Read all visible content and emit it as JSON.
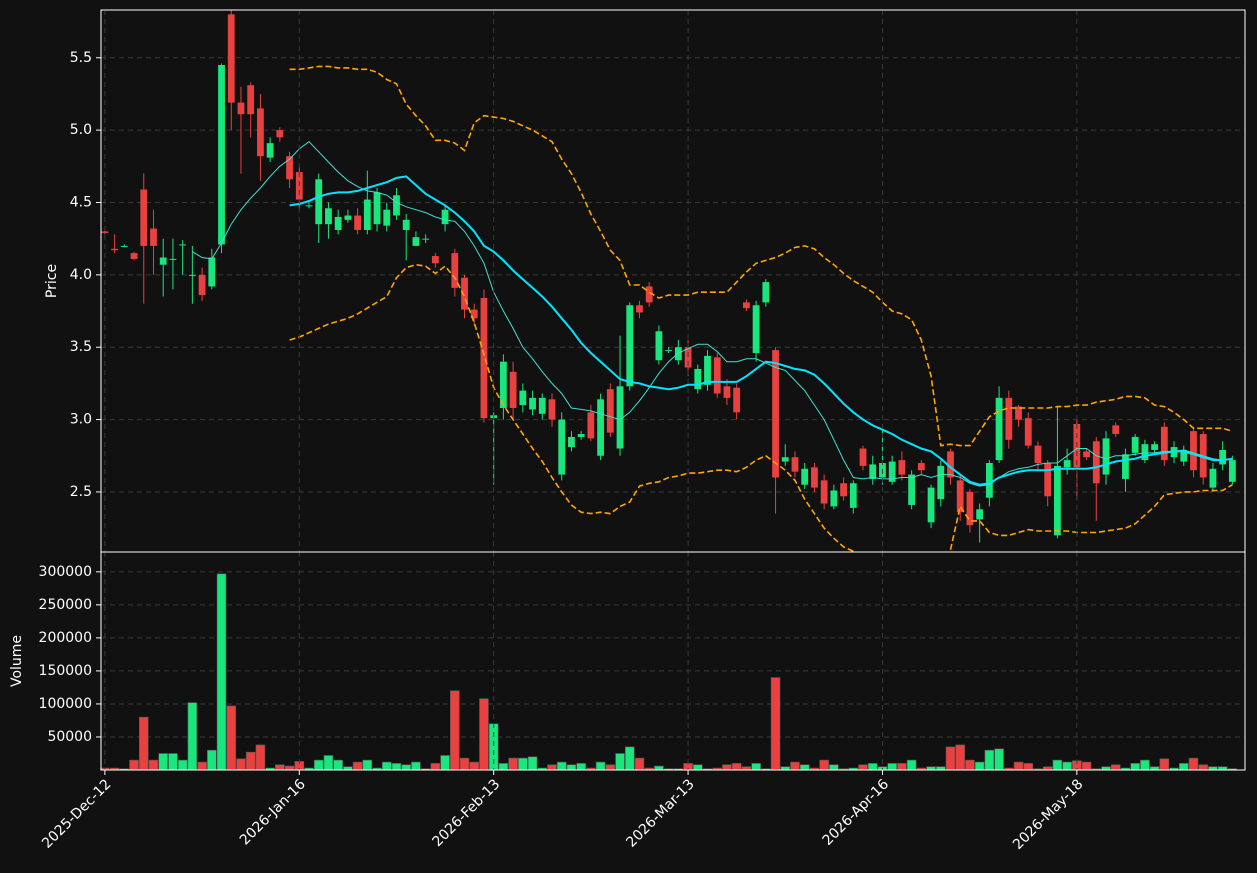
{
  "chart_data": [
    {
      "type": "candlestick",
      "ylabel": "Price",
      "xlim": [
        -0.4,
        117.3
      ],
      "ylim": [
        2.085,
        5.83
      ],
      "yticks": [
        2.5,
        {
          "value": 3,
          "label": "3.0"
        },
        3.5,
        {
          "value": 4,
          "label": "4.0"
        },
        4.5,
        {
          "value": 5,
          "label": "5.0"
        },
        5.5
      ],
      "grid": true,
      "up_color": "#19e67d",
      "down_color": "#e8413f",
      "open": [
        4.3,
        4.18,
        4.2,
        4.15,
        4.59,
        4.32,
        4.07,
        4.11,
        4.21,
        4.0,
        4.0,
        3.92,
        4.21,
        5.8,
        5.19,
        5.31,
        5.15,
        4.81,
        5.0,
        4.82,
        4.71,
        4.48,
        4.35,
        4.35,
        4.31,
        4.38,
        4.41,
        4.31,
        4.35,
        4.34,
        4.41,
        4.31,
        4.2,
        4.25,
        4.13,
        4.35,
        4.15,
        3.98,
        3.76,
        3.84,
        3.01,
        3.08,
        3.33,
        3.1,
        3.07,
        3.04,
        3.14,
        2.62,
        2.81,
        2.88,
        3.05,
        2.75,
        3.21,
        2.8,
        3.23,
        3.79,
        3.92,
        3.41,
        3.48,
        3.41,
        3.5,
        3.21,
        3.24,
        3.43,
        3.23,
        3.22,
        3.81,
        3.46,
        3.81,
        3.48,
        2.71,
        2.74,
        2.55,
        2.67,
        2.58,
        2.4,
        2.56,
        2.39,
        2.8,
        2.59,
        2.6,
        2.57,
        2.72,
        2.41,
        2.7,
        2.29,
        2.45,
        2.78,
        2.58,
        2.5,
        2.31,
        2.46,
        2.72,
        3.15,
        3.09,
        3.01,
        2.82,
        2.7,
        2.2,
        2.67,
        2.97,
        2.78,
        2.85,
        2.62,
        2.96,
        2.59,
        2.77,
        2.72,
        2.79,
        2.95,
        2.74,
        2.71,
        2.92,
        2.9,
        2.53,
        2.69,
        2.57
      ],
      "high": [
        4.31,
        4.28,
        4.21,
        4.16,
        4.7,
        4.45,
        4.25,
        4.25,
        4.24,
        4.2,
        4.05,
        4.18,
        5.46,
        5.83,
        5.3,
        5.33,
        5.25,
        4.95,
        5.02,
        4.85,
        4.75,
        4.5,
        4.7,
        4.5,
        4.45,
        4.45,
        4.46,
        4.72,
        4.6,
        4.5,
        4.6,
        4.42,
        4.3,
        4.28,
        4.15,
        4.48,
        4.18,
        4.0,
        3.8,
        3.9,
        3.05,
        3.45,
        3.4,
        3.25,
        3.2,
        3.18,
        3.18,
        3.05,
        2.92,
        2.92,
        3.1,
        3.18,
        3.25,
        3.58,
        3.81,
        3.82,
        3.95,
        3.65,
        3.5,
        3.55,
        3.55,
        3.38,
        3.48,
        3.46,
        3.28,
        3.25,
        3.83,
        3.82,
        3.97,
        3.5,
        2.83,
        2.78,
        2.7,
        2.7,
        2.62,
        2.55,
        2.6,
        2.58,
        2.82,
        2.75,
        2.95,
        2.75,
        2.78,
        2.65,
        2.72,
        2.55,
        2.72,
        2.8,
        2.62,
        2.52,
        2.42,
        2.72,
        3.23,
        3.2,
        3.1,
        3.05,
        2.85,
        2.72,
        3.09,
        2.8,
        3.0,
        2.8,
        2.88,
        2.92,
        2.98,
        2.8,
        2.9,
        2.86,
        2.85,
        2.98,
        2.85,
        2.82,
        2.95,
        2.92,
        2.7,
        2.85,
        2.75
      ],
      "low": [
        4.28,
        4.15,
        4.19,
        4.1,
        3.8,
        4.0,
        3.85,
        3.9,
        4.0,
        3.8,
        3.82,
        3.9,
        4.15,
        5.0,
        4.7,
        4.95,
        4.65,
        4.78,
        4.92,
        4.6,
        4.45,
        4.46,
        4.22,
        4.25,
        4.28,
        4.36,
        4.28,
        4.28,
        4.3,
        4.3,
        4.38,
        4.1,
        4.2,
        4.22,
        4.05,
        4.3,
        3.85,
        3.7,
        3.65,
        2.98,
        2.55,
        3.0,
        3.0,
        3.05,
        3.03,
        3.0,
        2.95,
        2.58,
        2.78,
        2.86,
        2.85,
        2.72,
        2.88,
        2.75,
        3.2,
        3.7,
        3.78,
        3.38,
        3.46,
        3.38,
        3.3,
        3.18,
        3.2,
        3.15,
        3.1,
        3.0,
        3.75,
        3.4,
        3.78,
        2.35,
        2.68,
        2.6,
        2.52,
        2.5,
        2.38,
        2.38,
        2.44,
        2.35,
        2.65,
        2.55,
        2.55,
        2.55,
        2.58,
        2.38,
        2.62,
        2.25,
        2.4,
        2.55,
        2.3,
        2.22,
        2.15,
        2.4,
        2.7,
        2.8,
        2.95,
        2.8,
        2.65,
        2.4,
        2.18,
        2.62,
        2.45,
        2.72,
        2.3,
        2.55,
        2.88,
        2.5,
        2.75,
        2.7,
        2.77,
        2.68,
        2.7,
        2.68,
        2.6,
        2.55,
        2.5,
        2.65,
        2.55
      ],
      "close": [
        4.29,
        4.17,
        4.2,
        4.11,
        4.2,
        4.2,
        4.12,
        4.11,
        4.21,
        4.0,
        3.86,
        4.12,
        5.45,
        5.19,
        5.11,
        5.11,
        4.82,
        4.91,
        4.95,
        4.66,
        4.52,
        4.48,
        4.66,
        4.46,
        4.4,
        4.41,
        4.31,
        4.52,
        4.57,
        4.45,
        4.55,
        4.38,
        4.26,
        4.25,
        4.08,
        4.45,
        3.91,
        3.76,
        3.7,
        3.01,
        3.03,
        3.4,
        3.08,
        3.2,
        3.15,
        3.15,
        3.0,
        3.0,
        2.88,
        2.9,
        2.87,
        3.14,
        2.91,
        3.23,
        3.79,
        3.74,
        3.81,
        3.61,
        3.48,
        3.5,
        3.36,
        3.35,
        3.44,
        3.18,
        3.15,
        3.05,
        3.77,
        3.79,
        3.95,
        2.6,
        2.74,
        2.64,
        2.66,
        2.53,
        2.42,
        2.51,
        2.47,
        2.56,
        2.68,
        2.69,
        2.7,
        2.71,
        2.62,
        2.62,
        2.65,
        2.53,
        2.68,
        2.6,
        2.36,
        2.27,
        2.38,
        2.7,
        3.15,
        2.86,
        3.0,
        2.82,
        2.7,
        2.47,
        2.68,
        2.72,
        2.67,
        2.74,
        2.56,
        2.87,
        2.9,
        2.76,
        2.88,
        2.83,
        2.83,
        2.72,
        2.81,
        2.79,
        2.65,
        2.6,
        2.66,
        2.79,
        2.72
      ],
      "lines": [
        {
          "color": "#40e0d0",
          "width": 1,
          "dashed": false,
          "values": [
            null,
            null,
            null,
            null,
            null,
            null,
            null,
            null,
            null,
            4.16,
            4.12,
            4.11,
            4.22,
            4.35,
            4.45,
            4.53,
            4.6,
            4.68,
            4.75,
            4.8,
            4.87,
            4.92,
            4.85,
            4.78,
            4.71,
            4.65,
            4.61,
            4.58,
            4.57,
            4.55,
            4.5,
            4.47,
            4.45,
            4.43,
            4.4,
            4.38,
            4.37,
            4.3,
            4.2,
            4.08,
            3.88,
            3.75,
            3.63,
            3.5,
            3.42,
            3.33,
            3.25,
            3.18,
            3.08,
            3.07,
            3.06,
            3.04,
            3.02,
            3.0,
            3.05,
            3.13,
            3.22,
            3.32,
            3.4,
            3.46,
            3.49,
            3.52,
            3.52,
            3.47,
            3.4,
            3.4,
            3.42,
            3.42,
            3.39,
            3.36,
            3.34,
            3.27,
            3.2,
            3.1,
            3.0,
            2.86,
            2.72,
            2.6,
            2.59,
            2.6,
            2.59,
            2.59,
            2.6,
            2.6,
            2.62,
            2.6,
            2.62,
            2.62,
            2.6,
            2.56,
            2.54,
            2.55,
            2.6,
            2.64,
            2.66,
            2.67,
            2.69,
            2.7,
            2.7,
            2.75,
            2.8,
            2.8,
            2.75,
            2.73,
            2.75,
            2.75,
            2.76,
            2.77,
            2.77,
            2.78,
            2.78,
            2.79,
            2.77,
            2.75,
            2.73,
            2.72,
            2.73
          ]
        },
        {
          "color": "#00e5ff",
          "width": 2,
          "dashed": false,
          "values": [
            null,
            null,
            null,
            null,
            null,
            null,
            null,
            null,
            null,
            null,
            null,
            null,
            null,
            null,
            null,
            null,
            null,
            null,
            null,
            4.48,
            4.49,
            4.51,
            4.54,
            4.56,
            4.57,
            4.57,
            4.58,
            4.6,
            4.62,
            4.64,
            4.67,
            4.68,
            4.62,
            4.56,
            4.52,
            4.48,
            4.43,
            4.37,
            4.3,
            4.2,
            4.16,
            4.1,
            4.03,
            3.97,
            3.91,
            3.85,
            3.78,
            3.7,
            3.62,
            3.53,
            3.46,
            3.4,
            3.34,
            3.28,
            3.26,
            3.25,
            3.23,
            3.22,
            3.21,
            3.22,
            3.24,
            3.24,
            3.26,
            3.26,
            3.26,
            3.26,
            3.3,
            3.35,
            3.4,
            3.39,
            3.37,
            3.35,
            3.34,
            3.31,
            3.25,
            3.18,
            3.11,
            3.05,
            3.0,
            2.96,
            2.93,
            2.9,
            2.86,
            2.83,
            2.8,
            2.78,
            2.73,
            2.67,
            2.62,
            2.57,
            2.55,
            2.56,
            2.6,
            2.62,
            2.64,
            2.65,
            2.65,
            2.65,
            2.66,
            2.66,
            2.66,
            2.66,
            2.67,
            2.69,
            2.71,
            2.72,
            2.73,
            2.75,
            2.76,
            2.77,
            2.78,
            2.78,
            2.76,
            2.74,
            2.72,
            2.72,
            2.73
          ]
        },
        {
          "color": "#ffa500",
          "width": 1.6,
          "dashed": true,
          "values": [
            null,
            null,
            null,
            null,
            null,
            null,
            null,
            null,
            null,
            null,
            null,
            null,
            null,
            null,
            null,
            null,
            null,
            null,
            null,
            5.42,
            5.42,
            5.43,
            5.44,
            5.44,
            5.43,
            5.43,
            5.42,
            5.42,
            5.4,
            5.35,
            5.32,
            5.18,
            5.1,
            5.03,
            4.93,
            4.93,
            4.91,
            4.86,
            5.05,
            5.1,
            5.09,
            5.08,
            5.06,
            5.03,
            5.0,
            4.96,
            4.92,
            4.8,
            4.7,
            4.57,
            4.42,
            4.3,
            4.17,
            4.1,
            3.93,
            3.93,
            3.88,
            3.84,
            3.86,
            3.86,
            3.86,
            3.88,
            3.88,
            3.88,
            3.88,
            3.95,
            4.02,
            4.08,
            4.1,
            4.12,
            4.15,
            4.19,
            4.2,
            4.18,
            4.12,
            4.07,
            4.01,
            3.96,
            3.92,
            3.88,
            3.81,
            3.75,
            3.73,
            3.69,
            3.55,
            3.3,
            2.82,
            2.83,
            2.82,
            2.82,
            2.92,
            3.02,
            3.06,
            3.08,
            3.08,
            3.08,
            3.08,
            3.08,
            3.09,
            3.09,
            3.1,
            3.1,
            3.12,
            3.13,
            3.14,
            3.16,
            3.16,
            3.15,
            3.1,
            3.09,
            3.05,
            3.0,
            2.94,
            2.94,
            2.94,
            2.94,
            2.92
          ]
        },
        {
          "color": "#ffa500",
          "width": 1.6,
          "dashed": true,
          "values": [
            null,
            null,
            null,
            null,
            null,
            null,
            null,
            null,
            null,
            null,
            null,
            null,
            null,
            null,
            null,
            null,
            null,
            null,
            null,
            3.55,
            3.57,
            3.6,
            3.63,
            3.66,
            3.68,
            3.7,
            3.73,
            3.77,
            3.81,
            3.85,
            3.98,
            4.05,
            4.07,
            4.06,
            4.01,
            4.06,
            3.98,
            3.85,
            3.67,
            3.45,
            3.22,
            3.1,
            3.0,
            2.9,
            2.8,
            2.71,
            2.6,
            2.5,
            2.41,
            2.36,
            2.35,
            2.36,
            2.35,
            2.4,
            2.43,
            2.54,
            2.56,
            2.57,
            2.6,
            2.61,
            2.63,
            2.63,
            2.64,
            2.65,
            2.65,
            2.64,
            2.67,
            2.72,
            2.75,
            2.7,
            2.65,
            2.58,
            2.45,
            2.35,
            2.25,
            2.18,
            2.12,
            2.09,
            null,
            null,
            null,
            null,
            null,
            null,
            null,
            null,
            null,
            2.1,
            2.4,
            2.3,
            2.3,
            2.22,
            2.2,
            2.2,
            2.22,
            2.24,
            2.23,
            2.23,
            2.23,
            2.23,
            2.22,
            2.22,
            2.22,
            2.23,
            2.24,
            2.25,
            2.28,
            2.34,
            2.4,
            2.48,
            2.49,
            2.5,
            2.5,
            2.51,
            2.51,
            2.51,
            2.55
          ]
        }
      ]
    },
    {
      "type": "bar",
      "ylabel": "Volume",
      "xlim": [
        -0.4,
        117.3
      ],
      "ylim": [
        0,
        330000
      ],
      "yticks": [
        50000,
        100000,
        150000,
        200000,
        250000,
        300000
      ],
      "grid": true,
      "categories": [
        "2025-Dec-12",
        null,
        null,
        null,
        null,
        null,
        null,
        null,
        null,
        null,
        null,
        null,
        null,
        null,
        null,
        null,
        null,
        null,
        null,
        null,
        "2026-Jan-16",
        null,
        null,
        null,
        null,
        null,
        null,
        null,
        null,
        null,
        null,
        null,
        null,
        null,
        null,
        null,
        null,
        null,
        null,
        null,
        "2026-Feb-13",
        null,
        null,
        null,
        null,
        null,
        null,
        null,
        null,
        null,
        null,
        null,
        null,
        null,
        null,
        null,
        null,
        null,
        null,
        null,
        "2026-Mar-13",
        null,
        null,
        null,
        null,
        null,
        null,
        null,
        null,
        null,
        null,
        null,
        null,
        null,
        null,
        null,
        null,
        null,
        null,
        null,
        "2026-Apr-16",
        null,
        null,
        null,
        null,
        null,
        null,
        null,
        null,
        null,
        null,
        null,
        null,
        null,
        null,
        null,
        null,
        null,
        null,
        null,
        "2026-May-18",
        null,
        null,
        null,
        null,
        null,
        null,
        null,
        null,
        null,
        null,
        null,
        null,
        null,
        null,
        null,
        null
      ],
      "values": [
        3000,
        3000,
        2000,
        15000,
        80000,
        15000,
        25000,
        25000,
        15000,
        102000,
        12000,
        30000,
        297000,
        97000,
        17000,
        27000,
        38000,
        3000,
        8000,
        6000,
        13000,
        3000,
        15000,
        22000,
        15000,
        5000,
        12000,
        15000,
        3000,
        12000,
        10000,
        8000,
        12000,
        2000,
        10000,
        22000,
        120000,
        18000,
        12000,
        108000,
        70000,
        10000,
        18000,
        18000,
        20000,
        3000,
        8000,
        12000,
        8000,
        10000,
        3000,
        12000,
        8000,
        25000,
        35000,
        18000,
        3000,
        6000,
        2000,
        2000,
        10000,
        8000,
        2000,
        3000,
        8000,
        10000,
        5000,
        10000,
        2000,
        140000,
        5000,
        12000,
        8000,
        3000,
        15000,
        8000,
        2000,
        3000,
        8000,
        10000,
        5000,
        10000,
        10000,
        15000,
        3000,
        5000,
        5000,
        35000,
        38000,
        15000,
        12000,
        30000,
        32000,
        3000,
        12000,
        10000,
        2000,
        5000,
        15000,
        12000,
        14000,
        12000,
        2000,
        5000,
        8000,
        3000,
        10000,
        15000,
        5000,
        17000,
        3000,
        10000,
        18000,
        8000,
        5000,
        5000,
        2000
      ]
    }
  ]
}
